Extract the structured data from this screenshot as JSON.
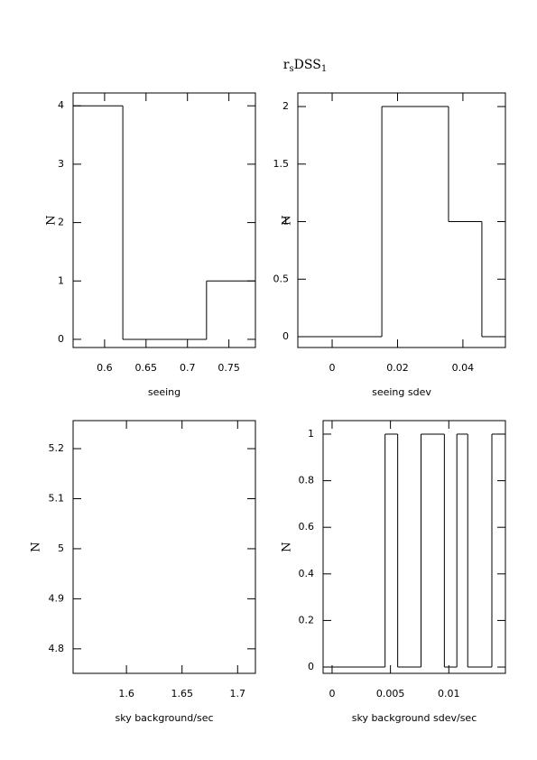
{
  "title": [
    "r",
    "s",
    "DSS",
    "1"
  ],
  "chart_data": [
    {
      "type": "histogram",
      "x_label": "seeing",
      "y_label": "N",
      "bins": [
        0.562,
        0.622,
        0.723,
        0.782
      ],
      "counts": [
        4,
        0,
        1
      ],
      "color": "#000000",
      "xlim": [
        0.562,
        0.782
      ],
      "xticks": [
        0.6,
        0.65,
        0.7,
        0.75
      ],
      "ylim": [
        -0.14,
        4.22
      ],
      "yticks": [
        0,
        1,
        2,
        3,
        4
      ]
    },
    {
      "type": "histogram",
      "x_label": "seeing sdev",
      "y_label": "N",
      "bins": [
        -0.0105,
        0.0152,
        0.0356,
        0.0458,
        0.053
      ],
      "counts": [
        0,
        2,
        1,
        0
      ],
      "color": "#000000",
      "xlim": [
        -0.0105,
        0.053
      ],
      "xticks": [
        0,
        0.02,
        0.04
      ],
      "ylim": [
        -0.094,
        2.118
      ],
      "yticks": [
        0,
        0.5,
        1,
        1.5,
        2
      ]
    },
    {
      "type": "histogram",
      "x_label": "sky background/sec",
      "y_label": "N",
      "xlim": [
        1.552,
        1.716
      ],
      "xticks": [
        1.6,
        1.65,
        1.7
      ],
      "ylim": [
        4.751,
        5.256
      ],
      "yticks": [
        4.8,
        4.9,
        5,
        5.1,
        5.2
      ]
    },
    {
      "type": "histogram",
      "x_label": "sky background sdev/sec",
      "y_label": "N",
      "bins": [
        -0.00077,
        0.00454,
        0.00562,
        0.00762,
        0.00962,
        0.01069,
        0.01162,
        0.01369,
        0.01477
      ],
      "counts": [
        0,
        1,
        0,
        1,
        0,
        1,
        0,
        1
      ],
      "color": "#000000",
      "xlim": [
        -0.00077,
        0.01485
      ],
      "xticks": [
        0,
        0.005,
        0.01
      ],
      "ylim": [
        -0.027,
        1.058
      ],
      "yticks": [
        0,
        0.2,
        0.4,
        0.6,
        0.8,
        1
      ]
    }
  ]
}
